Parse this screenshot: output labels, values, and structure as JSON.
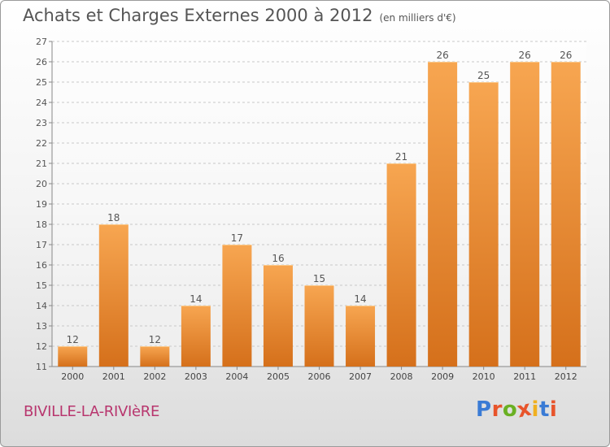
{
  "header": {
    "title": "Achats et Charges Externes 2000 à 2012",
    "unit": "(en milliers d'€)"
  },
  "footer": {
    "commune": "BIVILLE-LA-RIVIèRE",
    "logo": "Proxiti"
  },
  "colors": {
    "bar_light": "#f7a651",
    "bar_dark": "#d5701b",
    "commune_text": "#b8366e",
    "logo_letters": [
      "#3a7bd5",
      "#e8542b",
      "#6ab023",
      "#e8542b",
      "#f0b020",
      "#3a7bd5",
      "#e8542b"
    ]
  },
  "chart_data": {
    "type": "bar",
    "title": "Achats et Charges Externes 2000 à 2012",
    "subtitle": "(en milliers d'€)",
    "categories": [
      "2000",
      "2001",
      "2002",
      "2003",
      "2004",
      "2005",
      "2006",
      "2007",
      "2008",
      "2009",
      "2010",
      "2011",
      "2012"
    ],
    "values": [
      12,
      18,
      12,
      14,
      17,
      16,
      15,
      14,
      21,
      26,
      25,
      26,
      26
    ],
    "ylim": [
      11,
      27
    ],
    "yticks": [
      11,
      12,
      13,
      14,
      15,
      16,
      17,
      18,
      19,
      20,
      21,
      22,
      23,
      24,
      25,
      26,
      27
    ],
    "grid": true,
    "data_labels": true
  }
}
